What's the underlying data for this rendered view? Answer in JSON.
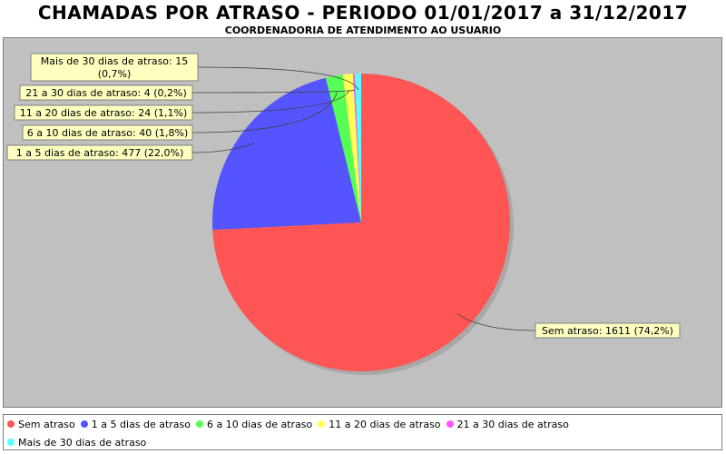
{
  "chart_data": {
    "type": "pie",
    "title": "CHAMADAS POR ATRASO - PERIODO 01/01/2017 a 31/12/2017",
    "subtitle": "COORDENADORIA DE ATENDIMENTO AO USUARIO",
    "legend_position": "bottom",
    "slices": [
      {
        "label": "Sem atraso",
        "value": 1611,
        "percent": "74,2%",
        "color": "#ff5555",
        "callout": "Sem atraso: 1611 (74,2%)"
      },
      {
        "label": "1 a 5 dias de atraso",
        "value": 477,
        "percent": "22,0%",
        "color": "#5555ff",
        "callout": "1 a 5 dias de atraso: 477 (22,0%)"
      },
      {
        "label": "6 a 10 dias de atraso",
        "value": 40,
        "percent": "1,8%",
        "color": "#55ff55",
        "callout": "6 a 10 dias de atraso: 40 (1,8%)"
      },
      {
        "label": "11 a 20 dias de atraso",
        "value": 24,
        "percent": "1,1%",
        "color": "#ffff55",
        "callout": "11 a 20 dias de atraso: 24 (1,1%)"
      },
      {
        "label": "21 a 30 dias de atraso",
        "value": 4,
        "percent": "0,2%",
        "color": "#ff55ff",
        "callout": "21 a 30 dias de atraso: 4 (0,2%)"
      },
      {
        "label": "Mais de 30 dias de atraso",
        "value": 15,
        "percent": "0,7%",
        "color": "#55ffff",
        "callout": "Mais de 30 dias de atraso: 15 (0,7%)"
      }
    ]
  }
}
